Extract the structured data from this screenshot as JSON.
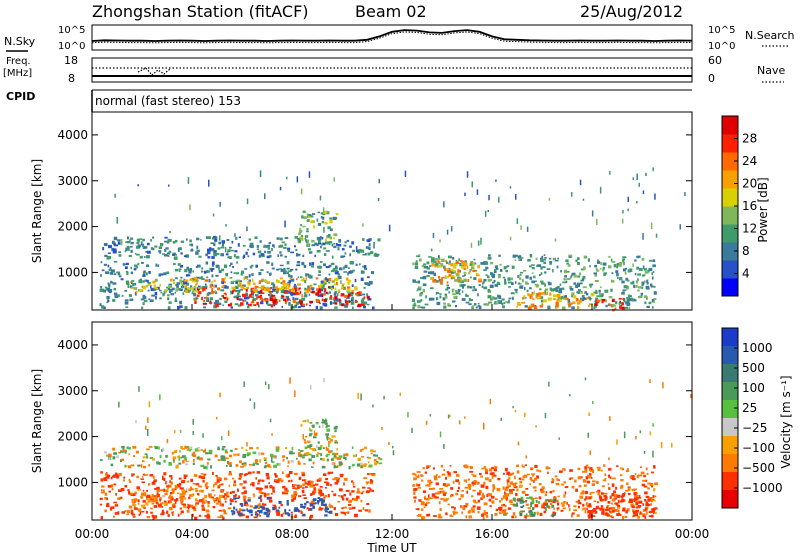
{
  "header": {
    "station": "Zhongshan Station (fitACF)",
    "beam": "Beam 02",
    "date": "25/Aug/2012"
  },
  "side_labels": {
    "nsky": "N.Sky",
    "freq_line1": "Freq.",
    "freq_line2": "[MHz]",
    "cpid": "CPID",
    "nsearch": "N.Search",
    "nave": "Nave"
  },
  "mode_text": "normal (fast stereo) 153",
  "chart_data": [
    {
      "type": "line",
      "panel": "noise",
      "left_ticks": [
        "10^5",
        "10^0"
      ],
      "right_ticks": [
        "10^5",
        "10^0"
      ],
      "series": [
        {
          "name": "N.Sky",
          "style": "solid"
        },
        {
          "name": "N.Search",
          "style": "dotted"
        }
      ],
      "x_hours": [
        0,
        0.5,
        1,
        1.5,
        2,
        2.5,
        3,
        3.5,
        4,
        4.5,
        5,
        5.5,
        6,
        6.5,
        7,
        7.5,
        8,
        8.5,
        9,
        9.5,
        10,
        10.5,
        11,
        11.5,
        12,
        12.5,
        13,
        13.5,
        14,
        14.5,
        15,
        15.5,
        16,
        16.5,
        17,
        17.5,
        18,
        18.5,
        19,
        19.5,
        20,
        20.5,
        21,
        21.5,
        22,
        22.5,
        23,
        23.5,
        24
      ],
      "nsky_rel": [
        0.35,
        0.38,
        0.37,
        0.36,
        0.36,
        0.35,
        0.36,
        0.37,
        0.36,
        0.35,
        0.36,
        0.37,
        0.36,
        0.36,
        0.35,
        0.36,
        0.37,
        0.36,
        0.36,
        0.37,
        0.36,
        0.36,
        0.4,
        0.55,
        0.75,
        0.82,
        0.8,
        0.72,
        0.7,
        0.78,
        0.82,
        0.75,
        0.55,
        0.42,
        0.4,
        0.38,
        0.37,
        0.36,
        0.36,
        0.37,
        0.36,
        0.36,
        0.37,
        0.36,
        0.36,
        0.35,
        0.36,
        0.37,
        0.36
      ]
    },
    {
      "type": "line",
      "panel": "frequency",
      "left_ticks": [
        "18",
        "8"
      ],
      "right_ticks": [
        "60",
        "0"
      ],
      "series": [
        {
          "name": "Freq.",
          "style": "solid",
          "value_mhz": 10
        },
        {
          "name": "Nave",
          "style": "dotted",
          "value": 24
        }
      ]
    },
    {
      "type": "heatmap",
      "panel": "power",
      "ylabel": "Slant Range [km]",
      "y_ticks": [
        "4000",
        "3000",
        "2000",
        "1000"
      ],
      "ylim": [
        180,
        4500
      ],
      "colorbar_label": "Power [dB]",
      "colorbar_ticks": [
        "28",
        "24",
        "20",
        "16",
        "12",
        "8",
        "4"
      ],
      "colorbar_colors": [
        "#0000ff",
        "#2851c8",
        "#3a7a9a",
        "#3f9b6a",
        "#7fb85a",
        "#d8d000",
        "#f8a000",
        "#ff6a00",
        "#ff2000",
        "#e00000"
      ],
      "echo_regions": [
        {
          "t0": 0.3,
          "t1": 11.2,
          "r0": 250,
          "r1": 1250,
          "power_db": 10
        },
        {
          "t0": 4.0,
          "t1": 11.0,
          "r0": 300,
          "r1": 700,
          "power_db": 28
        },
        {
          "t0": 1.5,
          "t1": 10.5,
          "r0": 600,
          "r1": 900,
          "power_db": 20
        },
        {
          "t0": 0.3,
          "t1": 11.5,
          "r0": 1350,
          "r1": 1800,
          "power_db": 10
        },
        {
          "t0": 8.2,
          "t1": 9.8,
          "r0": 1600,
          "r1": 2400,
          "power_db": 14
        },
        {
          "t0": 12.8,
          "t1": 22.5,
          "r0": 250,
          "r1": 1400,
          "power_db": 12
        },
        {
          "t0": 13.5,
          "t1": 15.5,
          "r0": 800,
          "r1": 1300,
          "power_db": 22
        },
        {
          "t0": 16.8,
          "t1": 20.0,
          "r0": 250,
          "r1": 600,
          "power_db": 22
        },
        {
          "t0": 20.0,
          "t1": 21.3,
          "r0": 200,
          "r1": 450,
          "power_db": 28
        }
      ]
    },
    {
      "type": "heatmap",
      "panel": "velocity",
      "ylabel": "Slant Range [km]",
      "y_ticks": [
        "4000",
        "3000",
        "2000",
        "1000"
      ],
      "ylim": [
        180,
        4500
      ],
      "xlabel": "Time UT",
      "x_ticks": [
        "00:00",
        "04:00",
        "08:00",
        "12:00",
        "16:00",
        "20:00",
        "00:00"
      ],
      "colorbar_label": "Velocity [m s⁻¹]",
      "colorbar_ticks": [
        "1000",
        "500",
        "100",
        "25",
        "−25",
        "−100",
        "−500",
        "−1000"
      ],
      "colorbar_colors": [
        "#1a3cc8",
        "#2a5ab0",
        "#3a7a70",
        "#4a9a5a",
        "#58c040",
        "#c8c8c8",
        "#f8a000",
        "#ff7a00",
        "#ff3000",
        "#e80000"
      ],
      "echo_regions": [
        {
          "t0": 0.3,
          "t1": 11.2,
          "r0": 250,
          "r1": 1250,
          "velocity": -300
        },
        {
          "t0": 5.5,
          "t1": 9.5,
          "r0": 300,
          "r1": 700,
          "velocity": 600
        },
        {
          "t0": 1.5,
          "t1": 5.5,
          "r0": 500,
          "r1": 900,
          "velocity": -150
        },
        {
          "t0": 0.3,
          "t1": 11.5,
          "r0": 1350,
          "r1": 1800,
          "velocity": 0
        },
        {
          "t0": 8.2,
          "t1": 9.8,
          "r0": 1600,
          "r1": 2400,
          "velocity": 50
        },
        {
          "t0": 12.8,
          "t1": 22.5,
          "r0": 250,
          "r1": 1400,
          "velocity": -200
        },
        {
          "t0": 16.5,
          "t1": 18.5,
          "r0": 300,
          "r1": 700,
          "velocity": 150
        },
        {
          "t0": 19.5,
          "t1": 22.5,
          "r0": 250,
          "r1": 800,
          "velocity": -400
        }
      ]
    }
  ]
}
